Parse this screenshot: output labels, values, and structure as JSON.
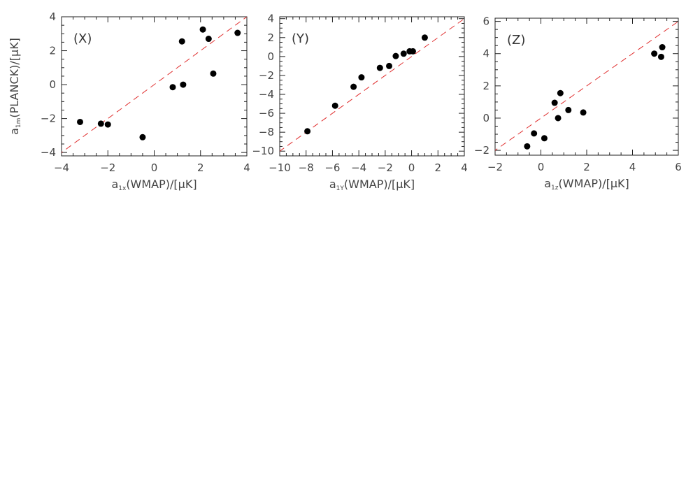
{
  "chart_data": [
    {
      "type": "scatter",
      "panel_label": "(X)",
      "xlabel": "a1x(WMAP)/[μK]",
      "ylabel": "a1m(PLANCK)/[μK]",
      "xlim": [
        -4,
        4
      ],
      "ylim": [
        -4.2,
        4
      ],
      "x_ticks": [
        -4,
        -2,
        0,
        2,
        4
      ],
      "y_ticks": [
        -4,
        -2,
        0,
        2,
        4
      ],
      "x_minor": 0.5,
      "y_minor": 0.5,
      "reference_line": "y = x",
      "reference_line_color": "#e03030",
      "marker_color": "#000000",
      "points": [
        {
          "x": -3.2,
          "y": -2.2
        },
        {
          "x": -2.3,
          "y": -2.3
        },
        {
          "x": -2.0,
          "y": -2.35
        },
        {
          "x": -0.5,
          "y": -3.1
        },
        {
          "x": 0.8,
          "y": -0.15
        },
        {
          "x": 1.25,
          "y": 0.0
        },
        {
          "x": 1.2,
          "y": 2.55
        },
        {
          "x": 2.1,
          "y": 3.25
        },
        {
          "x": 2.35,
          "y": 2.7
        },
        {
          "x": 2.55,
          "y": 0.65
        },
        {
          "x": 3.6,
          "y": 3.05
        }
      ]
    },
    {
      "type": "scatter",
      "panel_label": "(Y)",
      "xlabel": "a1Y(WMAP)/[μK]",
      "ylabel": "",
      "xlim": [
        -10,
        4
      ],
      "ylim": [
        -10.5,
        4.2
      ],
      "x_ticks": [
        -10,
        -8,
        -6,
        -4,
        -2,
        0,
        2,
        4
      ],
      "y_ticks": [
        -10,
        -8,
        -6,
        -4,
        -2,
        0,
        2,
        4
      ],
      "x_minor": 0.5,
      "y_minor": 0.5,
      "reference_line": "y = x",
      "reference_line_color": "#e03030",
      "marker_color": "#000000",
      "points": [
        {
          "x": -7.9,
          "y": -7.9
        },
        {
          "x": -5.8,
          "y": -5.2
        },
        {
          "x": -4.4,
          "y": -3.2
        },
        {
          "x": -3.8,
          "y": -2.2
        },
        {
          "x": -2.4,
          "y": -1.2
        },
        {
          "x": -1.7,
          "y": -1.0
        },
        {
          "x": -1.2,
          "y": 0.05
        },
        {
          "x": -0.6,
          "y": 0.3
        },
        {
          "x": -0.15,
          "y": 0.55
        },
        {
          "x": 0.1,
          "y": 0.55
        },
        {
          "x": 1.0,
          "y": 2.0
        }
      ]
    },
    {
      "type": "scatter",
      "panel_label": "(Z)",
      "xlabel": "a1z(WMAP)/[μK]",
      "ylabel": "",
      "xlim": [
        -2,
        6
      ],
      "ylim": [
        -2.3,
        6.2
      ],
      "x_ticks": [
        -2,
        0,
        2,
        4,
        6
      ],
      "y_ticks": [
        -2,
        0,
        2,
        4,
        6
      ],
      "x_minor": 0.5,
      "y_minor": 0.5,
      "reference_line": "y = x",
      "reference_line_color": "#e03030",
      "marker_color": "#000000",
      "points": [
        {
          "x": -0.6,
          "y": -1.75
        },
        {
          "x": -0.3,
          "y": -0.95
        },
        {
          "x": 0.15,
          "y": -1.25
        },
        {
          "x": 0.6,
          "y": 0.95
        },
        {
          "x": 0.75,
          "y": 0.0
        },
        {
          "x": 0.85,
          "y": 1.55
        },
        {
          "x": 1.2,
          "y": 0.5
        },
        {
          "x": 1.85,
          "y": 0.35
        },
        {
          "x": 4.95,
          "y": 4.0
        },
        {
          "x": 5.25,
          "y": 3.8
        },
        {
          "x": 5.3,
          "y": 4.4
        }
      ]
    }
  ]
}
